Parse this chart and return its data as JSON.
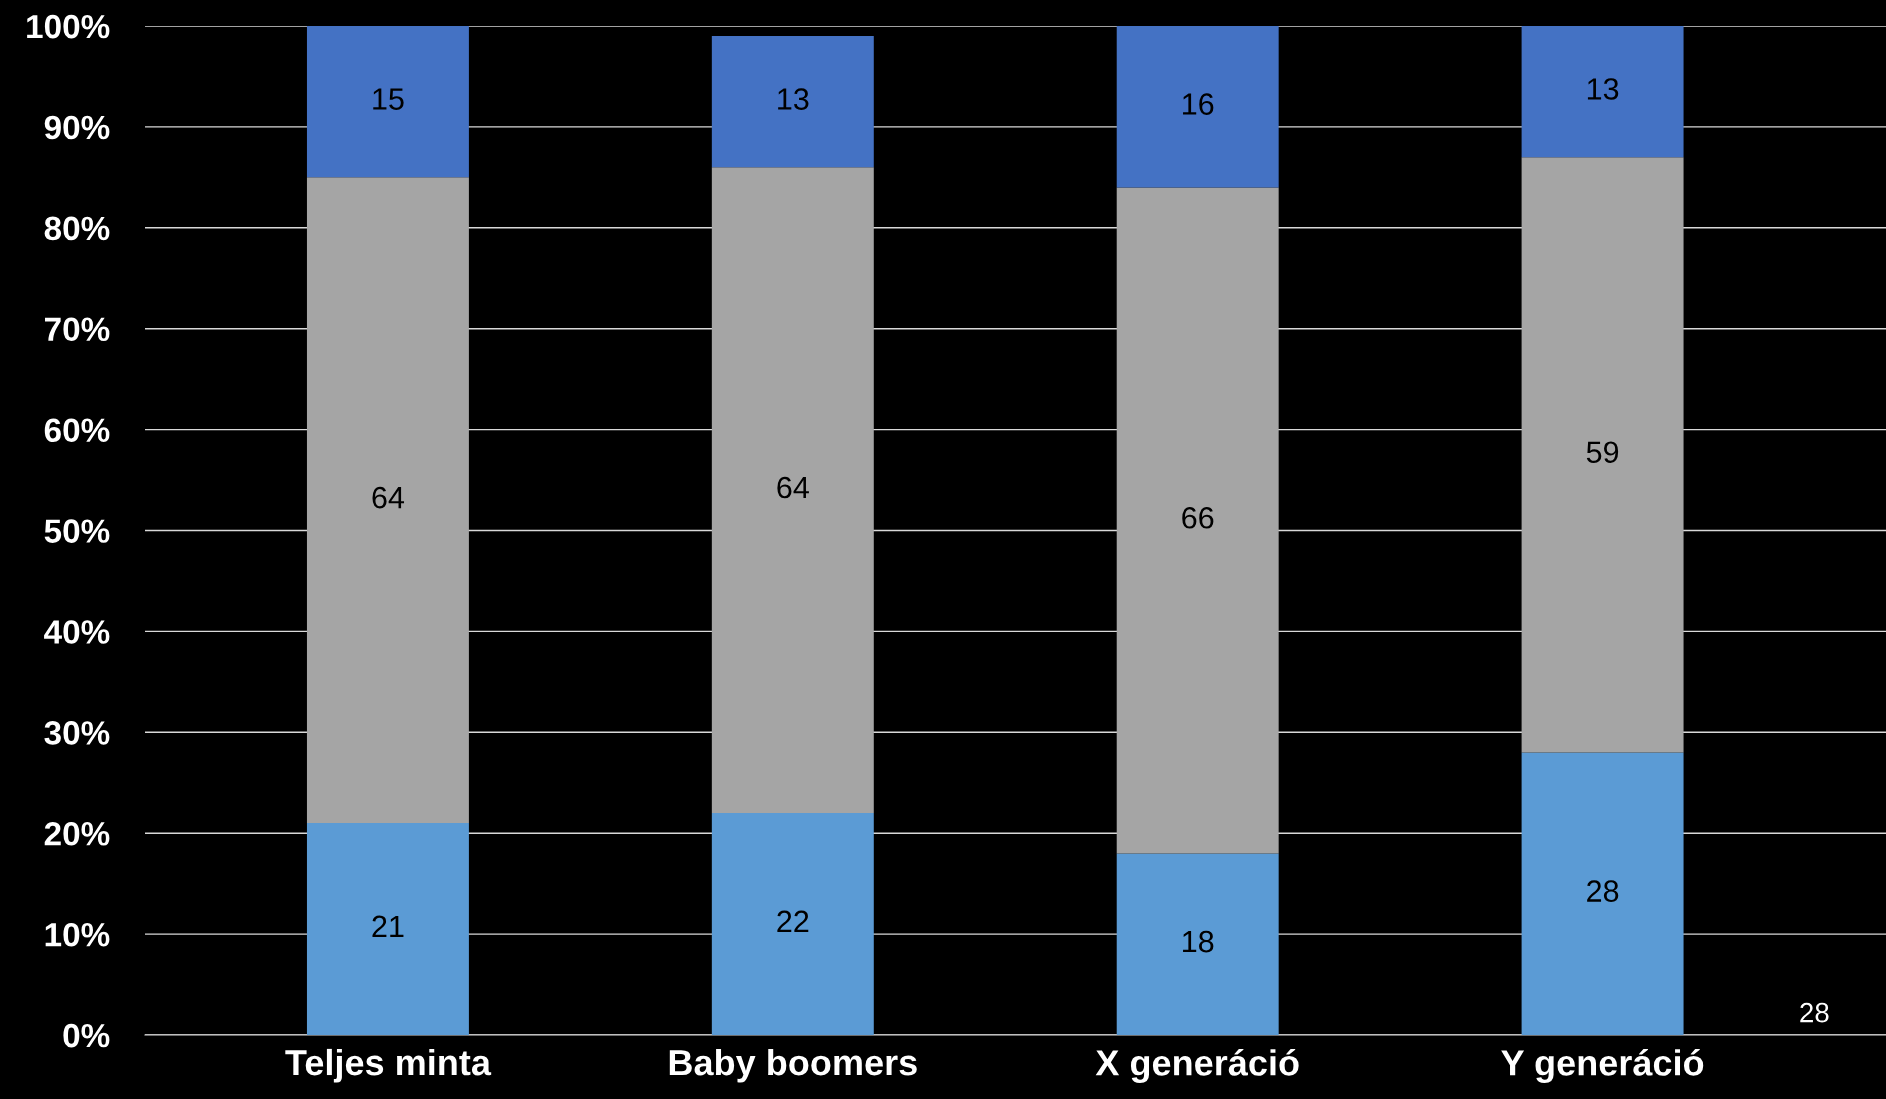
{
  "chart_data": {
    "type": "bar",
    "stacked": true,
    "categories": [
      "Teljes minta",
      "Baby boomers",
      "X generáció",
      "Y generáció"
    ],
    "series": [
      {
        "color": "#5b9bd5",
        "values": [
          21,
          22,
          18,
          28
        ]
      },
      {
        "color": "#a5a5a5",
        "values": [
          64,
          64,
          66,
          59
        ]
      },
      {
        "color": "#4472c4",
        "values": [
          15,
          13,
          16,
          13
        ]
      }
    ],
    "ylim": [
      0,
      100
    ],
    "yticks": [
      {
        "value": 0,
        "label": "0%"
      },
      {
        "value": 10,
        "label": "10%"
      },
      {
        "value": 20,
        "label": "20%"
      },
      {
        "value": 30,
        "label": "30%"
      },
      {
        "value": 40,
        "label": "40%"
      },
      {
        "value": 50,
        "label": "50%"
      },
      {
        "value": 60,
        "label": "60%"
      },
      {
        "value": 70,
        "label": "70%"
      },
      {
        "value": 80,
        "label": "80%"
      },
      {
        "value": 90,
        "label": "90%"
      },
      {
        "value": 100,
        "label": "100%"
      }
    ],
    "grid": "y",
    "data_labels": true,
    "legend": false,
    "annotations": [
      "28"
    ]
  }
}
